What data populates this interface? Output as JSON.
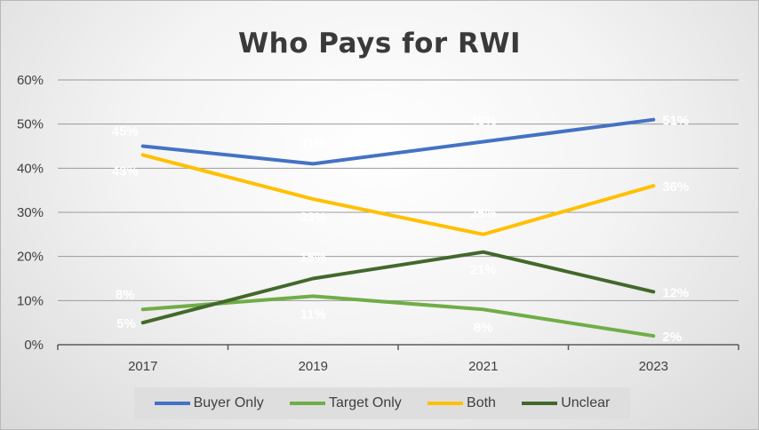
{
  "chart_data": {
    "type": "line",
    "title": "Who Pays for RWI",
    "x": [
      "2017",
      "2019",
      "2021",
      "2023"
    ],
    "ylim": [
      0,
      60
    ],
    "yticks": [
      "0%",
      "10%",
      "20%",
      "30%",
      "40%",
      "50%",
      "60%"
    ],
    "ytick_values": [
      0,
      10,
      20,
      30,
      40,
      50,
      60
    ],
    "grid": "horizontal",
    "legend_position": "bottom",
    "series": [
      {
        "name": "Buyer Only",
        "color": "#4472c4",
        "values": [
          45,
          41,
          46,
          51
        ],
        "labels": [
          "45%",
          "41%",
          "46%",
          "51%"
        ]
      },
      {
        "name": "Target Only",
        "color": "#70ad47",
        "values": [
          8,
          11,
          8,
          2
        ],
        "labels": [
          "8%",
          "11%",
          "8%",
          "2%"
        ]
      },
      {
        "name": "Both",
        "color": "#ffc000",
        "values": [
          43,
          33,
          25,
          36
        ],
        "labels": [
          "43%",
          "33%",
          "25%",
          "36%"
        ]
      },
      {
        "name": "Unclear",
        "color": "#43682b",
        "values": [
          5,
          15,
          21,
          12
        ],
        "labels": [
          "5%",
          "15%",
          "21%",
          "12%"
        ]
      }
    ]
  }
}
